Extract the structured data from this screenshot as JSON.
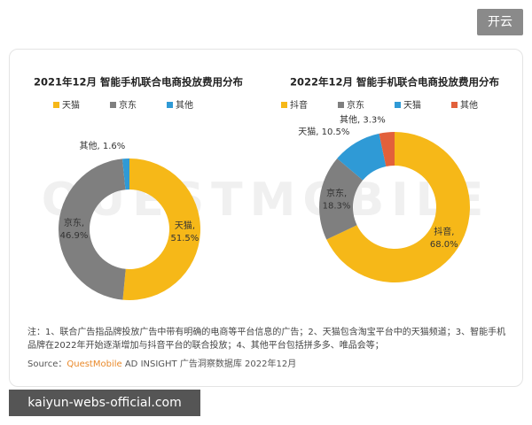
{
  "header": {
    "button": "开云"
  },
  "watermark": "QUESTMOBILE",
  "chart_data": [
    {
      "type": "pie",
      "donut": true,
      "title": "2021年12月 智能手机联合电商投放费用分布",
      "categories": [
        "天猫",
        "京东",
        "其他"
      ],
      "values": [
        51.5,
        46.9,
        1.6
      ],
      "value_labels": [
        "天猫,\n51.5%",
        "京东,\n46.9%",
        "其他, 1.6%"
      ],
      "colors": [
        "#f6b818",
        "#7f7f7f",
        "#2f9ad6"
      ]
    },
    {
      "type": "pie",
      "donut": true,
      "title": "2022年12月 智能手机联合电商投放费用分布",
      "categories": [
        "抖音",
        "京东",
        "天猫",
        "其他"
      ],
      "values": [
        68.0,
        18.3,
        10.5,
        3.3
      ],
      "value_labels": [
        "抖音,\n68.0%",
        "京东,\n18.3%",
        "天猫, 10.5%",
        "其他, 3.3%"
      ],
      "colors": [
        "#f6b818",
        "#7f7f7f",
        "#2f9ad6",
        "#e2603b"
      ]
    }
  ],
  "notes": {
    "footnote": "注：1、联合广告指品牌投放广告中带有明确的电商等平台信息的广告；2、天猫包含淘宝平台中的天猫频道；3、智能手机品牌在2022年开始逐渐增加与抖音平台的联合投放；4、其他平台包括拼多多、唯品会等；",
    "source_label": "Source：",
    "source_brand": "QuestMobile",
    "source_text": "AD INSIGHT 广告洞察数据库  2022年12月"
  },
  "url": "kaiyun-webs-official.com"
}
